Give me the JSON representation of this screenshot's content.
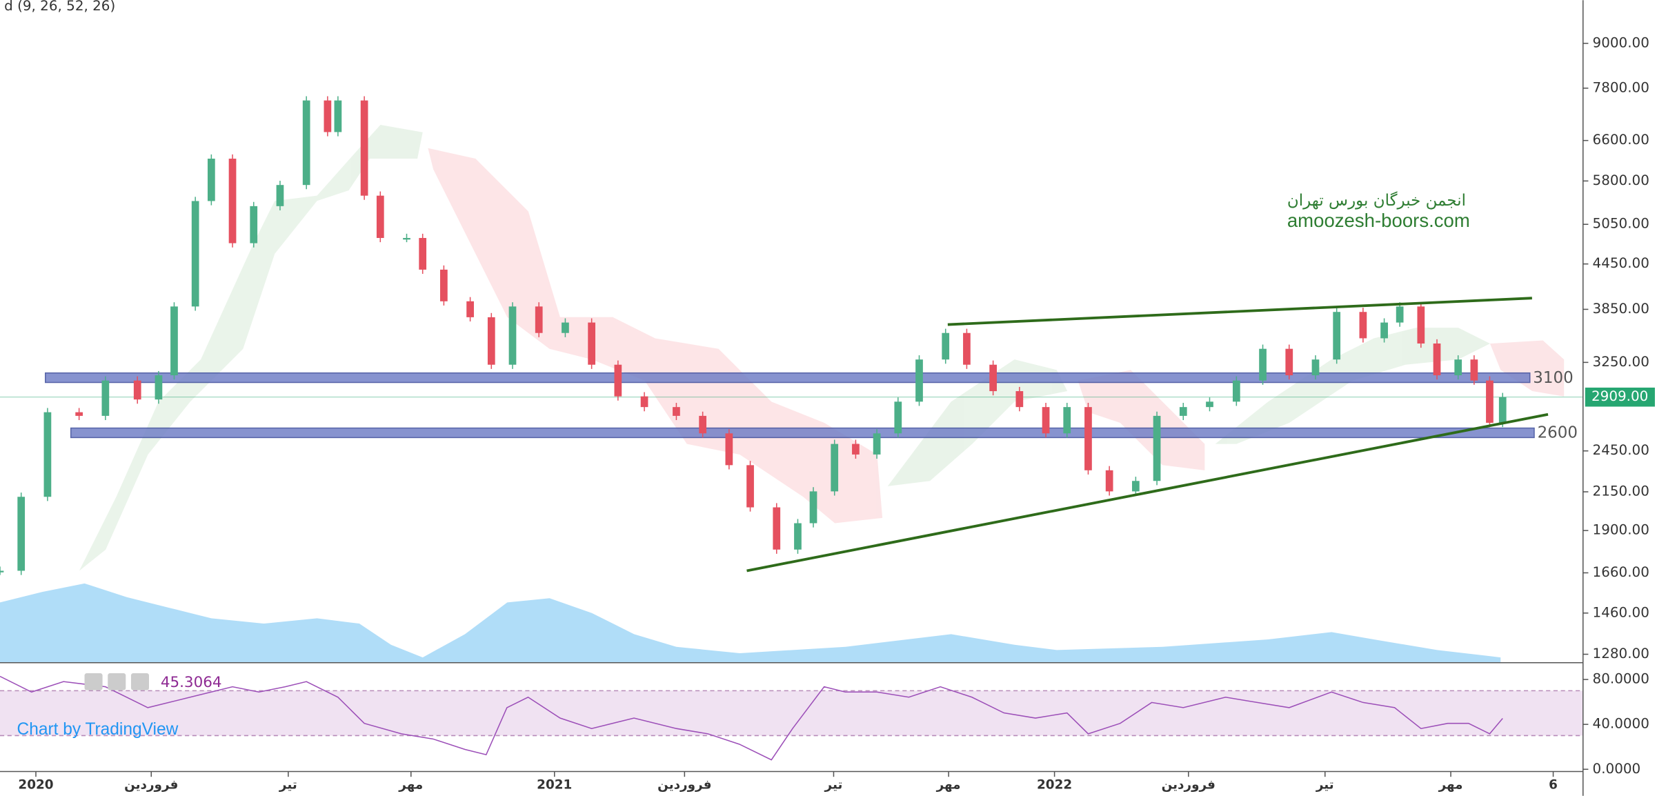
{
  "chart_data": [
    {
      "type": "candlestick",
      "legend_text": "d (9, 26, 52, 26)",
      "watermark": [
        "انجمن خبرگان بورس تهران",
        "amoozesh-boors.com"
      ],
      "x": [
        -0.83,
        -0.34,
        0.27,
        1.0,
        1.61,
        2.35,
        2.84,
        3.2,
        3.69,
        4.06,
        4.55,
        5.04,
        5.65,
        6.26,
        6.75,
        6.99,
        7.6,
        7.97,
        8.58,
        8.95,
        9.44,
        10.05,
        10.54,
        11.03,
        11.64,
        12.25,
        12.86,
        13.47,
        14.08,
        14.82,
        15.43,
        16.04,
        16.53,
        17.14,
        17.63,
        17.99,
        18.48,
        18.97,
        19.46,
        19.95,
        20.44,
        21.05,
        21.54,
        22.15,
        22.76,
        23.37,
        23.86,
        24.35,
        24.84,
        25.45,
        25.94,
        26.55,
        27.16,
        27.78,
        28.39,
        29.0,
        29.61,
        30.1,
        30.71,
        31.2,
        31.56,
        32.05,
        32.42,
        32.91,
        33.28,
        33.64,
        33.94
      ],
      "series": [
        {
          "values": [
            1671,
            2116,
            2772,
            2740,
            3067,
            2887,
            3119,
            3885,
            5440,
            6228,
            4755,
            5352,
            5726,
            7500,
            6780,
            7500,
            5534,
            4835,
            4835,
            4370,
            3950,
            3754,
            3226,
            3885,
            3570,
            3691,
            3226,
            2916,
            2818,
            2740,
            2591,
            2341,
            2046,
            1788,
            1945,
            2153,
            2505,
            2422,
            2591,
            2867,
            3280,
            3570,
            3226,
            2965,
            2818,
            2591,
            2818,
            2303,
            2153,
            2226,
            2740,
            2818,
            2867,
            3067,
            3394,
            3119,
            3280,
            3818,
            3510,
            3691,
            3885,
            3452,
            3119,
            3280,
            3067,
            2680,
            2909
          ],
          "up_color": "#4caf88",
          "down_color": "#e5505f"
        }
      ],
      "xlim": [
        -0.83,
        35.8
      ],
      "xticks": [
        {
          "value": 0,
          "label": "2020"
        },
        {
          "value": 2.67,
          "label": "فروردین"
        },
        {
          "value": 5.84,
          "label": "تیر"
        },
        {
          "value": 8.68,
          "label": "مهر"
        },
        {
          "value": 12,
          "label": "2021"
        },
        {
          "value": 15.01,
          "label": "فروردین"
        },
        {
          "value": 18.46,
          "label": "تیر"
        },
        {
          "value": 21.12,
          "label": "مهر"
        },
        {
          "value": 23.57,
          "label": "2022"
        },
        {
          "value": 26.67,
          "label": "فروردین"
        },
        {
          "value": 29.83,
          "label": "تیر"
        },
        {
          "value": 32.74,
          "label": "مهر"
        },
        {
          "value": 35.11,
          "label": "6"
        }
      ],
      "ylim": [
        1246,
        10330
      ],
      "log_scale": true,
      "grid": false,
      "yticks": [
        {
          "value": 9000,
          "label": "9000.00"
        },
        {
          "value": 7800,
          "label": "7800.00"
        },
        {
          "value": 6600,
          "label": "6600.00"
        },
        {
          "value": 5800,
          "label": "5800.00"
        },
        {
          "value": 5050,
          "label": "5050.00"
        },
        {
          "value": 4450,
          "label": "4450.00"
        },
        {
          "value": 3850,
          "label": "3850.00"
        },
        {
          "value": 3250,
          "label": "3250.00"
        },
        {
          "value": 2450,
          "label": "2450.00"
        },
        {
          "value": 2150,
          "label": "2150.00"
        },
        {
          "value": 1900,
          "label": "1900.00"
        },
        {
          "value": 1660,
          "label": "1660.00"
        },
        {
          "value": 1460,
          "label": "1460.00"
        },
        {
          "value": 1280,
          "label": "1280.00"
        }
      ],
      "last_price": {
        "value": 2909,
        "label": "2909.00",
        "color": "#26a671"
      },
      "zones": [
        {
          "value": 3100,
          "x": [
            0.22,
            34.57
          ]
        },
        {
          "value": 2600,
          "x": [
            0.81,
            34.67
          ]
        }
      ],
      "zone_color": "#7381c7",
      "trendlines": [
        {
          "x": [
            21.1,
            34.62
          ],
          "values": [
            3667,
            3990
          ]
        },
        {
          "x": [
            16.45,
            34.99
          ],
          "values": [
            1671,
            2753
          ]
        }
      ],
      "trendline_color": "#2e6b1a"
    },
    {
      "type": "line",
      "x": [
        -0.83,
        -0.1,
        0.64,
        1.61,
        2.59,
        3.57,
        4.55,
        5.16,
        5.77,
        6.26,
        6.99,
        7.6,
        8.46,
        9.19,
        9.93,
        10.42,
        10.9,
        11.39,
        12.13,
        12.86,
        13.84,
        14.82,
        15.55,
        16.28,
        17.02,
        17.51,
        18.24,
        18.73,
        19.46,
        20.2,
        20.93,
        21.66,
        22.4,
        23.13,
        23.86,
        24.35,
        25.09,
        25.82,
        26.55,
        27.53,
        28.26,
        29.0,
        29.98,
        30.71,
        31.44,
        32.05,
        32.67,
        33.15,
        33.64,
        33.94
      ],
      "values": [
        82.8,
        68.8,
        78.1,
        73.5,
        54.9,
        64.2,
        73.5,
        68.8,
        73.5,
        78.1,
        64.2,
        40.9,
        31.6,
        27,
        17.7,
        13,
        54.9,
        64.2,
        45.6,
        36.3,
        45.6,
        36.3,
        31.6,
        22.3,
        8.4,
        36.3,
        73.5,
        68.8,
        68.8,
        64.2,
        73.5,
        64.2,
        50.2,
        45.6,
        50.2,
        31.6,
        40.9,
        59.5,
        54.9,
        64.2,
        59.5,
        54.9,
        68.8,
        59.5,
        54.9,
        36.3,
        40.9,
        40.9,
        31.6,
        45.3064
      ],
      "color": "#9c4fb8",
      "xlim": [
        -0.83,
        35.8
      ],
      "ylim": [
        -2,
        94
      ],
      "yticks": [
        {
          "value": 80,
          "label": "80.0000"
        },
        {
          "value": 40,
          "label": "40.0000"
        },
        {
          "value": 0,
          "label": "0.0000"
        }
      ],
      "band": [
        30,
        70
      ],
      "band_color": "#f0e2f2",
      "credit": "Chart by TradingView"
    }
  ]
}
